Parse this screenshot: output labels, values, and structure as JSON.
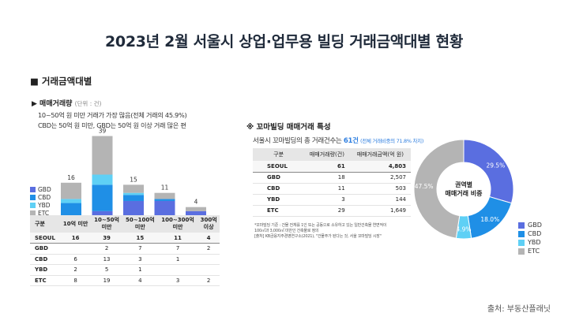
{
  "title": "2023년 2월 서울시 상업·업무용 빌딩 거래금액대별 현황",
  "section_head": "■ 거래금액대별",
  "sub_head": "▶ 매매거래량",
  "sub_head_unit": "(단위 : 건)",
  "desc_lines": [
    "10~50억 원 미만 거래가 가장 많음(전체 거래의 45.9%)",
    "CBD는 50억 원 미만, GBD는 50억 원 이상 거래 많은 편"
  ],
  "colors": {
    "GBD": "#5a6ee0",
    "CBD": "#1f8fe6",
    "YBD": "#5fd0f5",
    "ETC": "#b4b4b4"
  },
  "chart_data": [
    {
      "type": "bar",
      "stacked": true,
      "categories": [
        "10억 미만",
        "10~50억 미만",
        "50~100억 미만",
        "100~300억 미만",
        "300억 이상"
      ],
      "category_lines": [
        [
          "10억 미만"
        ],
        [
          "10~50억",
          "미만"
        ],
        [
          "50~100억",
          "미만"
        ],
        [
          "100~300억",
          "미만"
        ],
        [
          "300억",
          "이상"
        ]
      ],
      "totals": [
        16,
        39,
        15,
        11,
        4
      ],
      "series": [
        {
          "name": "GBD",
          "values": [
            0,
            2,
            7,
            7,
            2
          ]
        },
        {
          "name": "CBD",
          "values": [
            6,
            13,
            3,
            1,
            0
          ]
        },
        {
          "name": "YBD",
          "values": [
            2,
            5,
            1,
            0,
            0
          ]
        },
        {
          "name": "ETC",
          "values": [
            8,
            19,
            4,
            3,
            2
          ]
        }
      ],
      "legend_order": [
        "GBD",
        "CBD",
        "YBD",
        "ETC"
      ],
      "ylim": [
        0,
        40
      ]
    },
    {
      "type": "pie",
      "donut": true,
      "center_label": [
        "권역별",
        "매매거래 비중"
      ],
      "labels": [
        "GBD",
        "CBD",
        "YBD",
        "ETC"
      ],
      "values": [
        29.5,
        18.0,
        4.9,
        47.5
      ],
      "value_labels": [
        "29.5%",
        "18.0%",
        "4.9%",
        "47.5%"
      ]
    }
  ],
  "left_table": {
    "header": [
      "구분",
      "10억 미만",
      "10~50억 미만",
      "50~100억 미만",
      "100~300억 미만",
      "300억 이상"
    ],
    "header_lines": [
      [
        "구분"
      ],
      [
        "10억 미만"
      ],
      [
        "10~50억",
        "미만"
      ],
      [
        "50~100억",
        "미만"
      ],
      [
        "100~300억",
        "미만"
      ],
      [
        "300억",
        "이상"
      ]
    ],
    "rows": [
      [
        "SEOUL",
        "16",
        "39",
        "15",
        "11",
        "4"
      ],
      [
        "GBD",
        "",
        "2",
        "7",
        "7",
        "2"
      ],
      [
        "CBD",
        "6",
        "13",
        "3",
        "1",
        ""
      ],
      [
        "YBD",
        "2",
        "5",
        "1",
        "",
        ""
      ],
      [
        "ETC",
        "8",
        "19",
        "4",
        "3",
        "2"
      ]
    ]
  },
  "right": {
    "head": "※ 꼬마빌딩 매매거래 특성",
    "desc_prefix": "서울시 꼬마빌딩의 총 거래건수는 ",
    "desc_highlight": "61건",
    "desc_note": "(전체 거래비중의 71.8% 차지)",
    "table": {
      "header": [
        "구분",
        "매매거래량(건)",
        "매매거래금액(억 원)"
      ],
      "rows": [
        [
          "SEOUL",
          "61",
          "4,803"
        ],
        [
          "GBD",
          "18",
          "2,507"
        ],
        [
          "CBD",
          "11",
          "503"
        ],
        [
          "YBD",
          "3",
          "144"
        ],
        [
          "ETC",
          "29",
          "1,649"
        ]
      ]
    },
    "footnotes": [
      "*꼬마빌딩 기준 : 건물 전체를 1인 또는 공동으로 소유하고 있는 일반건축물 연면적이",
      "100㎡과 3,000㎡ 미만인 건축물로 정의",
      "[출처] KB금융지주경영연구소(2021), \"건물주가 된다는 것, 서울 꼬마빌딩 시장\""
    ]
  },
  "source": "출처: 부동산플래닛"
}
